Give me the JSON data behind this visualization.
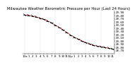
{
  "title": "Milwaukee Weather Barometric Pressure per Hour (Last 24 Hours)",
  "hours": [
    0,
    1,
    2,
    3,
    4,
    5,
    6,
    7,
    8,
    9,
    10,
    11,
    12,
    13,
    14,
    15,
    16,
    17,
    18,
    19,
    20,
    21,
    22,
    23
  ],
  "pressure": [
    29.82,
    29.81,
    29.79,
    29.76,
    29.72,
    29.68,
    29.63,
    29.57,
    29.5,
    29.43,
    29.35,
    29.27,
    29.19,
    29.12,
    29.06,
    29.0,
    28.95,
    28.91,
    28.87,
    28.84,
    28.82,
    28.8,
    28.78,
    28.75
  ],
  "line_color": "#cc0000",
  "tick_color": "#000000",
  "grid_color": "#aaaaaa",
  "bg_color": "#ffffff",
  "ylim": [
    28.6,
    29.95
  ],
  "ytick_vals": [
    28.7,
    28.8,
    28.9,
    29.0,
    29.1,
    29.2,
    29.3,
    29.4,
    29.5,
    29.6,
    29.7,
    29.8,
    29.9
  ],
  "xtick_positions": [
    0,
    1,
    2,
    3,
    4,
    5,
    6,
    7,
    8,
    9,
    10,
    11,
    12,
    13,
    14,
    15,
    16,
    17,
    18,
    19,
    20,
    21,
    22,
    23
  ],
  "xtick_labels": [
    "12a",
    "1",
    "2",
    "3",
    "4",
    "5",
    "6",
    "7",
    "8",
    "9",
    "10",
    "11",
    "12p",
    "1",
    "2",
    "3",
    "4",
    "5",
    "6",
    "7",
    "8",
    "9",
    "10",
    "11"
  ],
  "vgrid_positions": [
    0,
    4,
    8,
    12,
    16,
    20
  ],
  "title_fontsize": 3.8,
  "tick_fontsize": 3.0,
  "marker_size": 2.5,
  "line_width": 0.6
}
